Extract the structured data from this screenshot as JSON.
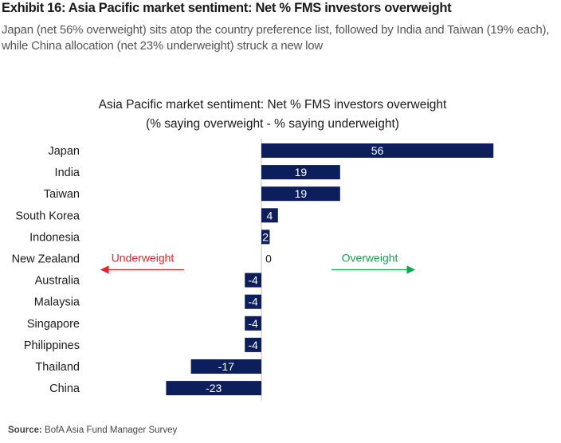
{
  "header": {
    "exhibit_title": "Exhibit 16: Asia Pacific market sentiment: Net % FMS investors overweight",
    "subtitle": "Japan (net 56% overweight) sits atop the country preference list, followed by India and Taiwan (19% each), while China allocation (net 23% underweight) struck a new low"
  },
  "chart_data": {
    "type": "bar",
    "orientation": "horizontal",
    "title": "Asia Pacific market sentiment: Net % FMS investors overweight",
    "subtitle": "(% saying overweight - % saying underweight)",
    "categories": [
      "Japan",
      "India",
      "Taiwan",
      "South Korea",
      "Indonesia",
      "New Zealand",
      "Australia",
      "Malaysia",
      "Singapore",
      "Philippines",
      "Thailand",
      "China"
    ],
    "values": [
      56,
      19,
      19,
      4,
      2,
      0,
      -4,
      -4,
      -4,
      -4,
      -17,
      -23
    ],
    "data_labels": [
      "56",
      "19",
      "19",
      "4",
      "2",
      "0",
      "-4",
      "-4",
      "-4",
      "-4",
      "-17",
      "-23"
    ],
    "xlim": [
      -23,
      35
    ],
    "bar_color": "#0c1e5b",
    "grid": false,
    "annotations": [
      {
        "text": "Underweight",
        "direction": "left",
        "color": "#e8202a"
      },
      {
        "text": "Overweight",
        "direction": "right",
        "color": "#12a54a"
      }
    ]
  },
  "source": {
    "label": "Source:",
    "text": "BofA Asia Fund Manager Survey"
  }
}
